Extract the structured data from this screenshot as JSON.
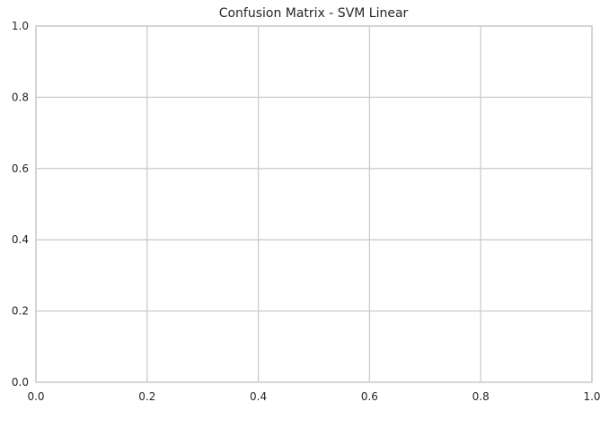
{
  "chart_data": {
    "type": "scatter",
    "title": "Confusion Matrix - SVM Linear",
    "xlabel": "",
    "ylabel": "",
    "xlim": [
      0,
      1
    ],
    "ylim": [
      0,
      1
    ],
    "xticks": [
      0.0,
      0.2,
      0.4,
      0.6,
      0.8,
      1.0
    ],
    "yticks": [
      0.0,
      0.2,
      0.4,
      0.6,
      0.8,
      1.0
    ],
    "xtick_labels": [
      "0.0",
      "0.2",
      "0.4",
      "0.6",
      "0.8",
      "1.0"
    ],
    "ytick_labels": [
      "0.0",
      "0.2",
      "0.4",
      "0.6",
      "0.8",
      "1.0"
    ],
    "grid": true,
    "series": [],
    "colors": {
      "grid": "#cccccc",
      "spine": "#cccccc",
      "background": "#ffffff",
      "text": "#262626"
    }
  }
}
